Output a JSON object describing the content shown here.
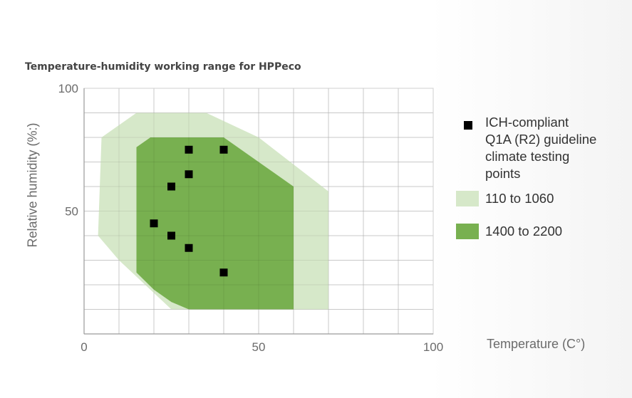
{
  "chart_data": {
    "type": "scatter",
    "title": "Temperature-humidity working range for HPPeco",
    "xlabel": "Temperature (C°)",
    "ylabel": "Relative humidity (%:)",
    "xlim": [
      0,
      100
    ],
    "ylim": [
      0,
      100
    ],
    "x_ticks": [
      "0",
      "50",
      "100"
    ],
    "y_ticks": [
      "50",
      "100"
    ],
    "grid": true,
    "legend_position": "right",
    "regions": [
      {
        "name": "110 to 1060",
        "color": "#d6e8c9",
        "polygon": [
          [
            5,
            80
          ],
          [
            15,
            90
          ],
          [
            35,
            90
          ],
          [
            50,
            80
          ],
          [
            70,
            58
          ],
          [
            70,
            10
          ],
          [
            25,
            10
          ],
          [
            10,
            30
          ],
          [
            4,
            40
          ]
        ]
      },
      {
        "name": "1400 to 2200",
        "color": "#78b050",
        "polygon": [
          [
            15,
            76
          ],
          [
            19,
            80
          ],
          [
            40,
            80
          ],
          [
            60,
            60
          ],
          [
            60,
            10
          ],
          [
            30,
            10
          ],
          [
            25,
            13
          ],
          [
            20,
            18
          ],
          [
            15,
            25
          ]
        ]
      }
    ],
    "series": [
      {
        "name": "ICH-compliant Q1A (R2) guideline climate testing points",
        "marker": "square",
        "color": "#000000",
        "x": [
          30,
          40,
          30,
          25,
          20,
          25,
          30,
          40
        ],
        "y": [
          75,
          75,
          65,
          60,
          45,
          40,
          35,
          25
        ]
      }
    ]
  },
  "legend": {
    "points_lines": [
      "ICH-compliant",
      "Q1A (R2) guideline",
      "climate testing",
      "points"
    ],
    "light_label": "110 to 1060",
    "dark_label": "1400 to 2200",
    "light_color": "#d6e8c9",
    "dark_color": "#78b050"
  }
}
